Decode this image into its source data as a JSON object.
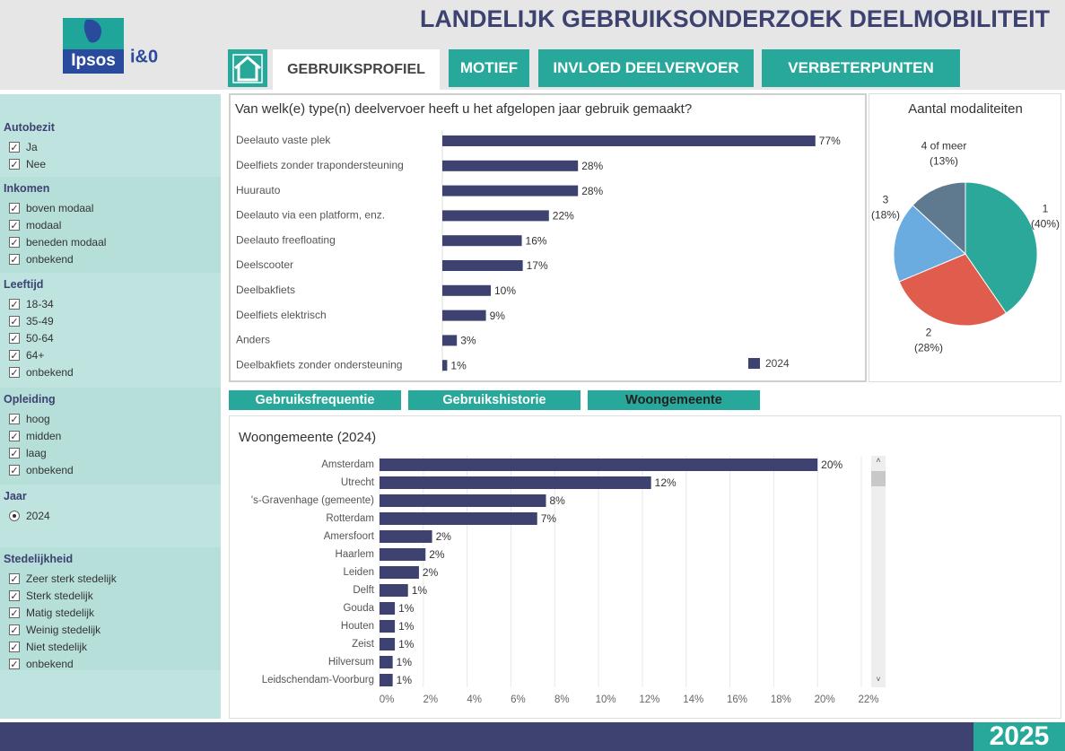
{
  "header": {
    "title": "LANDELIJK GEBRUIKSONDERZOEK DEELMOBILITEIT",
    "logo": {
      "brand": "Ipsos",
      "partner": "i&0"
    }
  },
  "nav": {
    "tabs": [
      "GEBRUIKSPROFIEL",
      "MOTIEF",
      "INVLOED DEELVERVOER",
      "VERBETERPUNTEN"
    ],
    "active": 0
  },
  "filters": [
    {
      "title": "Autobezit",
      "control": "checkbox",
      "options": [
        "Ja",
        "Nee"
      ]
    },
    {
      "title": "Inkomen",
      "control": "checkbox",
      "options": [
        "boven modaal",
        "modaal",
        "beneden modaal",
        "onbekend"
      ]
    },
    {
      "title": "Leeftijd",
      "control": "checkbox",
      "options": [
        "18-34",
        "35-49",
        "50-64",
        "64+",
        "onbekend"
      ]
    },
    {
      "title": "Opleiding",
      "control": "checkbox",
      "options": [
        "hoog",
        "midden",
        "laag",
        "onbekend"
      ]
    },
    {
      "title": "Jaar",
      "control": "radio",
      "options": [
        "2024"
      ]
    },
    {
      "title": "Stedelijkheid",
      "control": "checkbox",
      "options": [
        "Zeer sterk stedelijk",
        "Sterk stedelijk",
        "Matig stedelijk",
        "Weinig stedelijk",
        "Niet stedelijk",
        "onbekend"
      ]
    }
  ],
  "subtabs": {
    "items": [
      "Gebruiksfrequentie",
      "Gebruikshistorie",
      "Woongemeente"
    ],
    "active": 2
  },
  "footer": {
    "year": "2025"
  },
  "chart_data": [
    {
      "type": "bar",
      "orientation": "horizontal",
      "title": "Van welk(e) type(n) deelvervoer heeft u het afgelopen jaar gebruik gemaakt?",
      "categories": [
        "Deelauto vaste plek",
        "Deelfiets zonder trapondersteuning",
        "Huurauto",
        "Deelauto via een platform, enz.",
        "Deelauto freefloating",
        "Deelscooter",
        "Deelbakfiets",
        "Deelfiets elektrisch",
        "Anders",
        "Deelbakfiets zonder ondersteuning"
      ],
      "series": [
        {
          "name": "2024",
          "color": "#3d4270",
          "values": [
            77,
            28,
            28,
            22,
            16.4,
            16.6,
            10,
            9,
            3,
            1
          ],
          "value_labels": [
            "77%",
            "28%",
            "28%",
            "22%",
            "16%",
            "17%",
            "10%",
            "9%",
            "3%",
            "1%"
          ]
        }
      ],
      "legend": "bottom-right"
    },
    {
      "type": "pie",
      "title": "Aantal modaliteiten",
      "categories": [
        "1",
        "2",
        "3",
        "4 of meer"
      ],
      "values": [
        40,
        28,
        18,
        13
      ],
      "value_labels": [
        "(40%)",
        "(28%)",
        "(18%)",
        "(13%)"
      ],
      "colors": [
        "#2ba89a",
        "#e05c4d",
        "#6aace0",
        "#5f7a8f"
      ]
    },
    {
      "type": "bar",
      "orientation": "horizontal",
      "title": "Woongemeente (2024)",
      "categories": [
        "Amsterdam",
        "Utrecht",
        "'s-Gravenhage (gemeente)",
        "Rotterdam",
        "Amersfoort",
        "Haarlem",
        "Leiden",
        "Delft",
        "Gouda",
        "Houten",
        "Zeist",
        "Hilversum",
        "Leidschendam-Voorburg"
      ],
      "values": [
        20,
        12.4,
        7.6,
        7.2,
        2.4,
        2.1,
        1.8,
        1.3,
        0.7,
        0.7,
        0.7,
        0.6,
        0.6
      ],
      "value_labels": [
        "20%",
        "12%",
        "8%",
        "7%",
        "2%",
        "2%",
        "2%",
        "1%",
        "1%",
        "1%",
        "1%",
        "1%",
        "1%"
      ],
      "color": "#3d4270",
      "xlim": [
        0,
        22
      ],
      "xticks": [
        {
          "value": 0,
          "label": "0%"
        },
        {
          "value": 2,
          "label": "2%"
        },
        {
          "value": 4,
          "label": "4%"
        },
        {
          "value": 6,
          "label": "6%"
        },
        {
          "value": 8,
          "label": "8%"
        },
        {
          "value": 10,
          "label": "10%"
        },
        {
          "value": 12,
          "label": "12%"
        },
        {
          "value": 14,
          "label": "14%"
        },
        {
          "value": 16,
          "label": "16%"
        },
        {
          "value": 18,
          "label": "18%"
        },
        {
          "value": 20,
          "label": "20%"
        },
        {
          "value": 22,
          "label": "22%"
        }
      ],
      "grid": true
    }
  ]
}
